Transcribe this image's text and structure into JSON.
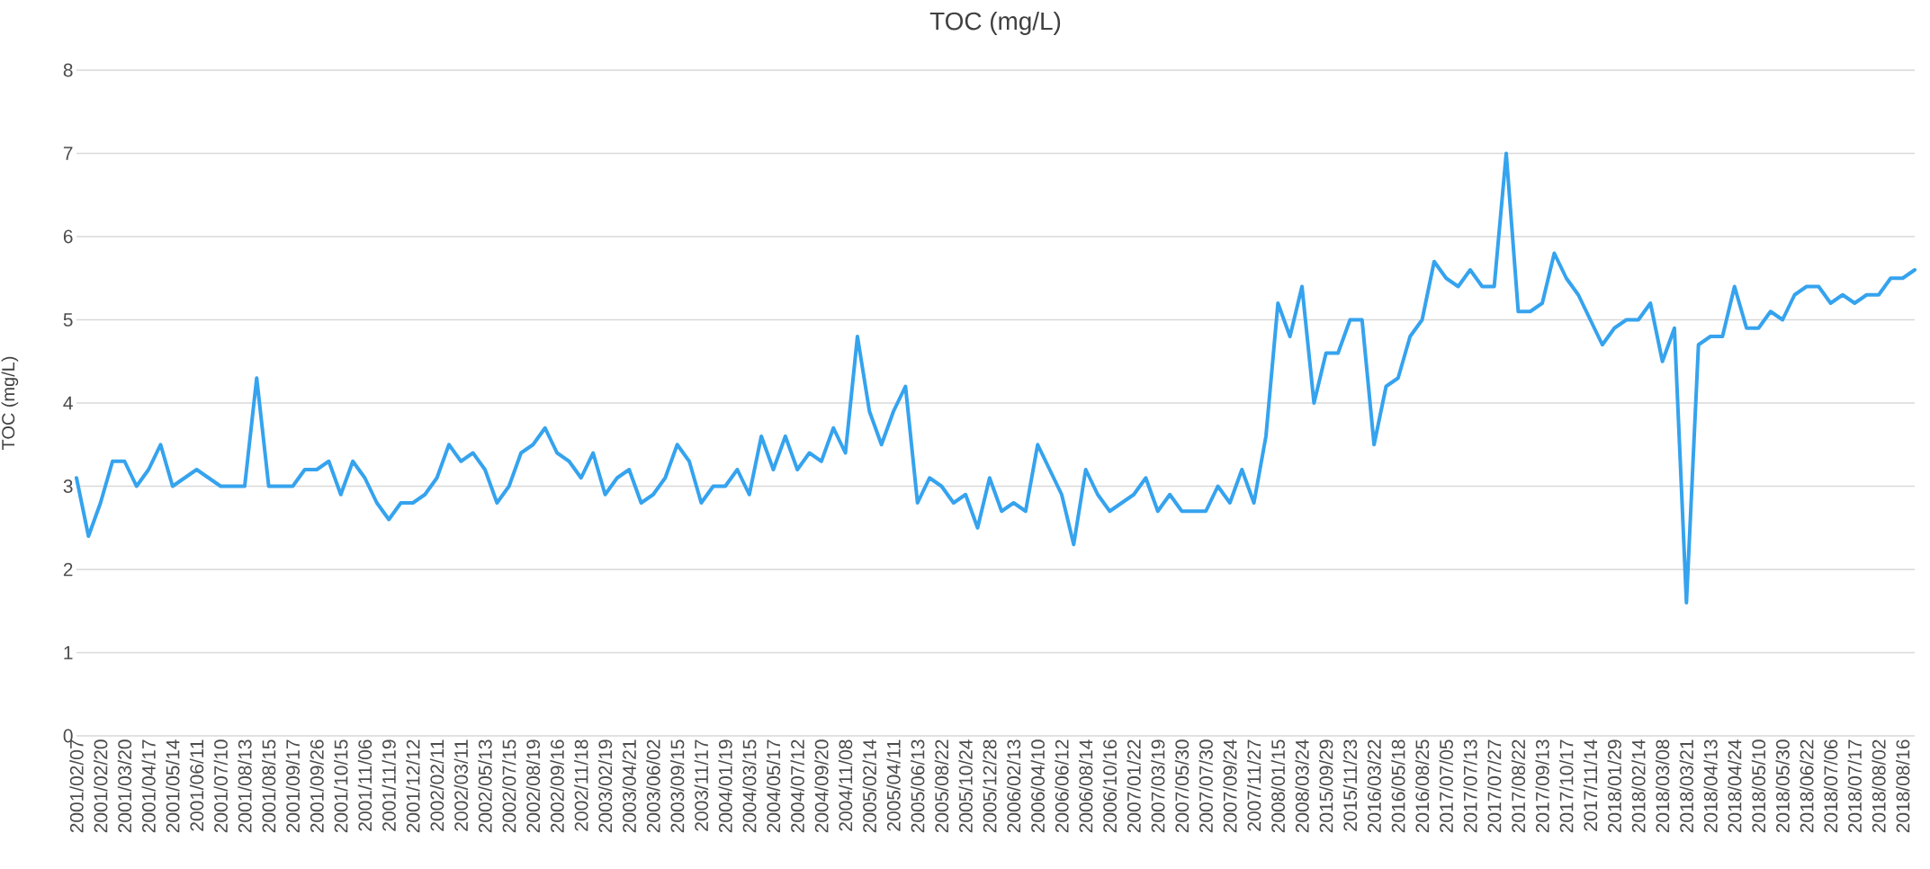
{
  "chart_data": {
    "type": "line",
    "title": "TOC (mg/L)",
    "ylabel": "TOC (mg/L)",
    "categories": [
      "2001/02/07",
      null,
      "2001/02/20",
      null,
      "2001/03/20",
      null,
      "2001/04/17",
      null,
      "2001/05/14",
      null,
      "2001/06/11",
      null,
      "2001/07/10",
      null,
      "2001/08/13",
      null,
      "2001/08/15",
      null,
      "2001/09/17",
      null,
      "2001/09/26",
      null,
      "2001/10/15",
      null,
      "2001/11/06",
      null,
      "2001/11/19",
      null,
      "2001/12/12",
      null,
      "2002/02/11",
      null,
      "2002/03/11",
      null,
      "2002/05/13",
      null,
      "2002/07/15",
      null,
      "2002/08/19",
      null,
      "2002/09/16",
      null,
      "2002/11/18",
      null,
      "2003/02/19",
      null,
      "2003/04/21",
      null,
      "2003/06/02",
      null,
      "2003/09/15",
      null,
      "2003/11/17",
      null,
      "2004/01/19",
      null,
      "2004/03/15",
      null,
      "2004/05/17",
      null,
      "2004/07/12",
      null,
      "2004/09/20",
      null,
      "2004/11/08",
      null,
      "2005/02/14",
      null,
      "2005/04/11",
      null,
      "2005/06/13",
      null,
      "2005/08/22",
      null,
      "2005/10/24",
      null,
      "2005/12/28",
      null,
      "2006/02/13",
      null,
      "2006/04/10",
      null,
      "2006/06/12",
      null,
      "2006/08/14",
      null,
      "2006/10/16",
      null,
      "2007/01/22",
      null,
      "2007/03/19",
      null,
      "2007/05/30",
      null,
      "2007/07/30",
      null,
      "2007/09/24",
      null,
      "2007/11/27",
      null,
      "2008/01/15",
      null,
      "2008/03/24",
      null,
      "2015/09/29",
      null,
      "2015/11/23",
      null,
      "2016/03/22",
      null,
      "2016/05/18",
      null,
      "2016/08/25",
      null,
      "2017/07/05",
      null,
      "2017/07/13",
      null,
      "2017/07/27",
      null,
      "2017/08/22",
      null,
      "2017/09/13",
      null,
      "2017/10/17",
      null,
      "2017/11/14",
      null,
      "2018/01/29",
      null,
      "2018/02/14",
      null,
      "2018/03/08",
      null,
      "2018/03/21",
      null,
      "2018/04/13",
      null,
      "2018/04/24",
      null,
      "2018/05/10",
      null,
      "2018/05/30",
      null,
      "2018/06/22",
      null,
      "2018/07/06",
      null,
      "2018/07/17",
      null,
      "2018/08/02",
      null,
      "2018/08/16",
      null
    ],
    "series": [
      {
        "color": "#35a3ee",
        "values": [
          3.1,
          2.4,
          2.8,
          3.3,
          3.3,
          3.0,
          3.2,
          3.5,
          3.0,
          3.1,
          3.2,
          3.1,
          3.0,
          3.0,
          3.0,
          4.3,
          3.0,
          3.0,
          3.0,
          3.2,
          3.2,
          3.3,
          2.9,
          3.3,
          3.1,
          2.8,
          2.6,
          2.8,
          2.8,
          2.9,
          3.1,
          3.5,
          3.3,
          3.4,
          3.2,
          2.8,
          3.0,
          3.4,
          3.5,
          3.7,
          3.4,
          3.3,
          3.1,
          3.4,
          2.9,
          3.1,
          3.2,
          2.8,
          2.9,
          3.1,
          3.5,
          3.3,
          2.8,
          3.0,
          3.0,
          3.2,
          2.9,
          3.6,
          3.2,
          3.6,
          3.2,
          3.4,
          3.3,
          3.7,
          3.4,
          4.8,
          3.9,
          3.5,
          3.9,
          4.2,
          2.8,
          3.1,
          3.0,
          2.8,
          2.9,
          2.5,
          3.1,
          2.7,
          2.8,
          2.7,
          3.5,
          3.2,
          2.9,
          2.3,
          3.2,
          2.9,
          2.7,
          2.8,
          2.9,
          3.1,
          2.7,
          2.9,
          2.7,
          2.7,
          2.7,
          3.0,
          2.8,
          3.2,
          2.8,
          3.6,
          5.2,
          4.8,
          5.4,
          4.0,
          4.6,
          4.6,
          5.0,
          5.0,
          3.5,
          4.2,
          4.3,
          4.8,
          5.0,
          5.7,
          5.5,
          5.4,
          5.6,
          5.4,
          5.4,
          7.0,
          5.1,
          5.1,
          5.2,
          5.8,
          5.5,
          5.3,
          5.0,
          4.7,
          4.9,
          5.0,
          5.0,
          5.2,
          4.5,
          4.9,
          1.6,
          4.7,
          4.8,
          4.8,
          5.4,
          4.9,
          4.9,
          5.1,
          5.0,
          5.3,
          5.4,
          5.4,
          5.2,
          5.3,
          5.2,
          5.3,
          5.3,
          5.5,
          5.5,
          5.6
        ]
      }
    ],
    "ylim": [
      0,
      8
    ],
    "yticks": [
      0,
      1,
      2,
      3,
      4,
      5,
      6,
      7,
      8
    ],
    "grid": "y",
    "marker": "none",
    "line_style": "solid"
  }
}
